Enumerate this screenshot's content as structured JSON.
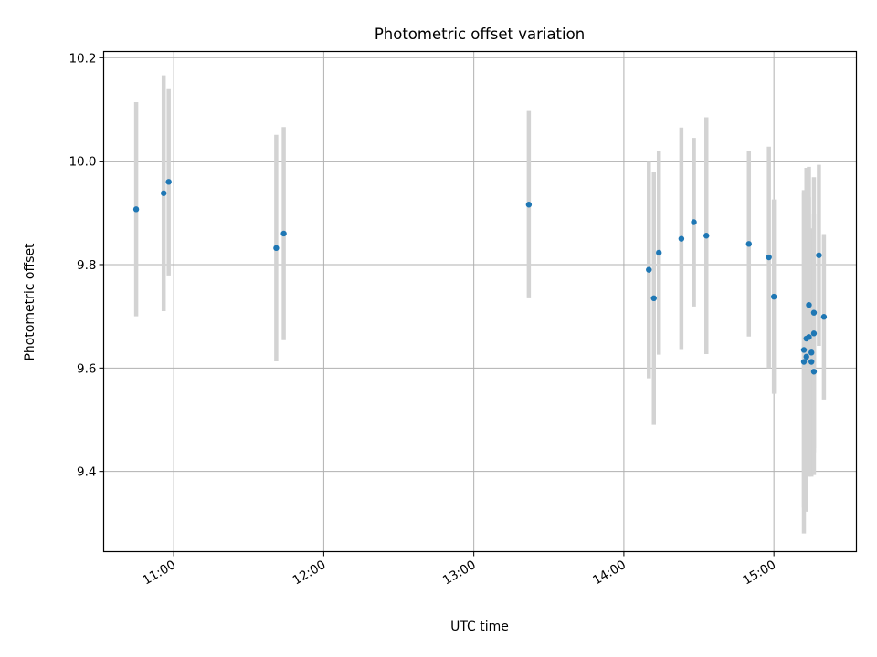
{
  "chart_data": {
    "type": "scatter",
    "title": "Photometric offset variation",
    "xlabel": "UTC time",
    "ylabel": "Photometric offset",
    "x_is_time": true,
    "xlim": [
      "10:32",
      "15:33"
    ],
    "ylim": [
      9.245,
      10.212
    ],
    "x_ticks": [
      "11:00",
      "12:00",
      "13:00",
      "14:00",
      "15:00"
    ],
    "y_ticks": [
      9.4,
      9.6,
      9.8,
      10.0,
      10.2
    ],
    "y_tick_labels": [
      "9.4",
      "9.6",
      "9.8",
      "10.0",
      "10.2"
    ],
    "grid": true,
    "colors": {
      "points": "#1f77b4",
      "errorbars": "#d3d3d3",
      "grid": "#b0b0b0"
    },
    "series": [
      {
        "points": [
          {
            "x": "10:45",
            "y": 9.907,
            "err": 0.207
          },
          {
            "x": "10:56",
            "y": 9.938,
            "err": 0.228
          },
          {
            "x": "10:58",
            "y": 9.96,
            "err": 0.181
          },
          {
            "x": "11:41",
            "y": 9.832,
            "err": 0.219
          },
          {
            "x": "11:44",
            "y": 9.86,
            "err": 0.206
          },
          {
            "x": "13:22",
            "y": 9.916,
            "err": 0.181
          },
          {
            "x": "14:10",
            "y": 9.79,
            "err": 0.21
          },
          {
            "x": "14:12",
            "y": 9.735,
            "err": 0.245
          },
          {
            "x": "14:14",
            "y": 9.823,
            "err": 0.197
          },
          {
            "x": "14:23",
            "y": 9.85,
            "err": 0.215
          },
          {
            "x": "14:28",
            "y": 9.882,
            "err": 0.163
          },
          {
            "x": "14:33",
            "y": 9.856,
            "err": 0.229
          },
          {
            "x": "14:50",
            "y": 9.84,
            "err": 0.179
          },
          {
            "x": "14:58",
            "y": 9.814,
            "err": 0.214
          },
          {
            "x": "15:00",
            "y": 9.738,
            "err": 0.188
          },
          {
            "x": "15:12",
            "y": 9.635,
            "err": 0.305
          },
          {
            "x": "15:12",
            "y": 9.612,
            "err": 0.332
          },
          {
            "x": "15:13",
            "y": 9.622,
            "err": 0.3
          },
          {
            "x": "15:13",
            "y": 9.657,
            "err": 0.33
          },
          {
            "x": "15:14",
            "y": 9.722,
            "err": 0.267
          },
          {
            "x": "15:14",
            "y": 9.66,
            "err": 0.27
          },
          {
            "x": "15:15",
            "y": 9.612,
            "err": 0.22
          },
          {
            "x": "15:15",
            "y": 9.63,
            "err": 0.24
          },
          {
            "x": "15:16",
            "y": 9.593,
            "err": 0.2
          },
          {
            "x": "15:16",
            "y": 9.707,
            "err": 0.262
          },
          {
            "x": "15:16",
            "y": 9.667,
            "err": 0.23
          },
          {
            "x": "15:18",
            "y": 9.818,
            "err": 0.175
          },
          {
            "x": "15:20",
            "y": 9.699,
            "err": 0.16
          }
        ]
      }
    ]
  }
}
